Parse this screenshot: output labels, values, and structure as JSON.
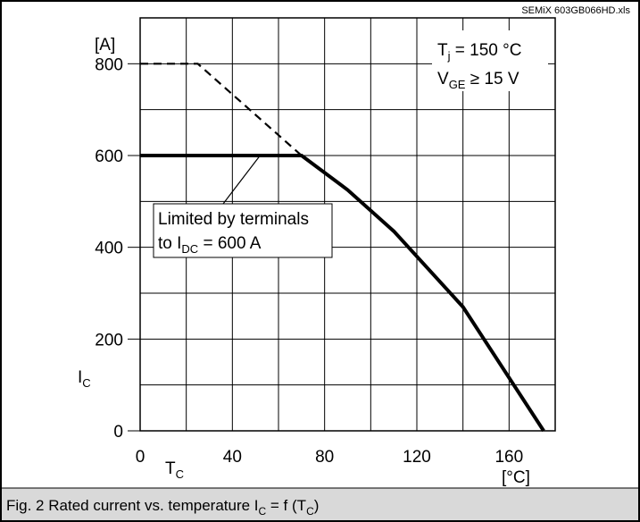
{
  "chart_data": {
    "type": "line",
    "source_file": "SEMiX 603GB066HD.xls",
    "x_axis": {
      "symbol": "T",
      "symbol_sub": "C",
      "unit": "[°C]",
      "ticks": [
        0,
        40,
        80,
        120,
        160
      ],
      "xlim": [
        0,
        180
      ],
      "grid_step": 20
    },
    "y_axis": {
      "symbol": "I",
      "symbol_sub": "C",
      "unit": "[A]",
      "ticks": [
        0,
        200,
        400,
        600,
        800
      ],
      "ylim": [
        0,
        900
      ],
      "grid_step": 100
    },
    "grid": true,
    "series": [
      {
        "style": "solid",
        "x": [
          0,
          70,
          90,
          110,
          140,
          175
        ],
        "y": [
          600,
          600,
          525,
          435,
          270,
          0
        ]
      },
      {
        "style": "dashed",
        "x": [
          0,
          25,
          70
        ],
        "y": [
          800,
          800,
          600
        ]
      }
    ],
    "conditions": [
      {
        "text": "T",
        "sub": "j",
        "rest": " = 150 °C"
      },
      {
        "text": "V",
        "sub": "GE",
        "rest": " ≥ 15 V"
      }
    ],
    "annotation": {
      "line1": "Limited by terminals",
      "line2_prefix": "to I",
      "line2_sub": "DC",
      "line2_rest": " = 600 A",
      "points_to": {
        "x": 52,
        "y": 600
      }
    },
    "caption": {
      "prefix": "Fig. 2 Rated current vs. temperature I",
      "sub1": "C",
      "mid": " = f (T",
      "sub2": "C",
      "suffix": ")"
    }
  }
}
